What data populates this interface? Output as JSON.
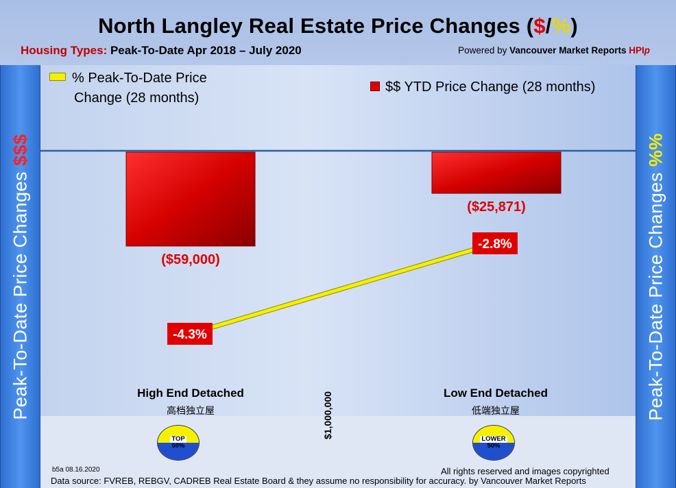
{
  "title_parts": [
    "North Langley Real Estate Price Changes (",
    "$",
    "/",
    "%",
    ")"
  ],
  "subtitle_label": "Housing Types:",
  "subtitle_range": " Peak-To-Date Apr 2018 – July 2020",
  "powered_prefix": "Powered by ",
  "powered_org": "Vancouver Market Reports ",
  "powered_hpi": "HPI",
  "powered_hpi_suffix": "p",
  "left_axis": {
    "text": "Peak-To-Date Price Changes ",
    "highlight": "$$$"
  },
  "right_axis": {
    "text": "Peak-To-Date  Price  Changes  ",
    "highlight": "%%"
  },
  "legend_pct": [
    "% Peak-To-Date Price",
    "Change (28 months)"
  ],
  "legend_dollar": "$$ YTD Price Change (28 months)",
  "divider_label": "$1,000,000",
  "badges": [
    {
      "line1": "TOP",
      "line2": "50%"
    },
    {
      "line1": "LOWER",
      "line2": "50%"
    }
  ],
  "footer": {
    "code": "b5a 08.16.2020",
    "rights": "All rights reserved and  images copyrighted",
    "source": "Data source: FVREB, REBGV, CADREB Real Estate Board & they assume no responsibility for accuracy. by Vancouver Market Reports"
  },
  "colors": {
    "bar": "#e00000",
    "line": "#f5f000",
    "pct_label_bg": "#e00000"
  },
  "chart_data": {
    "type": "bar",
    "categories": [
      "High End Detached",
      "Low End Detached"
    ],
    "categories_cn": [
      "高档独立屋",
      "低端独立屋"
    ],
    "series": [
      {
        "name": "$$ YTD Price Change (28 months)",
        "type": "bar",
        "values": [
          -59000,
          -25871
        ],
        "labels": [
          "($59,000)",
          "($25,871)"
        ]
      },
      {
        "name": "% Peak-To-Date Price Change (28 months)",
        "type": "line",
        "values": [
          -4.3,
          -2.8
        ],
        "labels": [
          "-4.3%",
          "-2.8%"
        ]
      }
    ],
    "title": "North Langley Real Estate Price Changes ($/%)",
    "ylabel_left": "Peak-To-Date Price Changes $$$",
    "ylabel_right": "Peak-To-Date  Price  Changes  %%",
    "grid": false,
    "legend": "top"
  }
}
